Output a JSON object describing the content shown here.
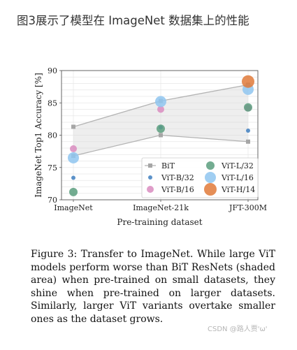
{
  "heading": "图3展示了模型在 ImageNet 数据集上的性能",
  "chart_data": {
    "type": "scatter",
    "xlabel": "Pre-training dataset",
    "ylabel": "ImageNet Top1 Accuracy [%]",
    "categories": [
      "ImageNet",
      "ImageNet-21k",
      "JFT-300M"
    ],
    "ylim": [
      70,
      90
    ],
    "yticks": [
      70,
      75,
      80,
      85,
      90
    ],
    "grid": true,
    "legend_position": "bottom-right",
    "bit_range": {
      "name": "BiT",
      "upper": [
        81.3,
        85.3,
        87.8
      ],
      "lower": [
        76.8,
        80.0,
        79.0
      ],
      "color": "#a6a6a6"
    },
    "series": [
      {
        "name": "ViT-B/32",
        "color": "#3f7fbf",
        "size": "xs",
        "values": [
          73.4,
          81.2,
          80.7
        ]
      },
      {
        "name": "ViT-B/16",
        "color": "#d98cc0",
        "size": "s",
        "values": [
          77.9,
          84.0,
          84.2
        ]
      },
      {
        "name": "ViT-L/32",
        "color": "#5a9e7e",
        "size": "m",
        "values": [
          71.2,
          81.0,
          84.3
        ]
      },
      {
        "name": "ViT-L/16",
        "color": "#8fc5f0",
        "size": "l",
        "values": [
          76.5,
          85.2,
          87.1
        ]
      },
      {
        "name": "ViT-H/14",
        "color": "#e07a3a",
        "size": "xl",
        "values": [
          null,
          null,
          88.3
        ]
      }
    ]
  },
  "caption": "Figure 3:  Transfer to ImageNet.  While large ViT models perform worse than BiT ResNets (shaded area) when pre-trained on small datasets, they shine when pre-trained on larger datasets. Similarly, larger ViT variants overtake smaller ones as the dataset grows.",
  "watermark": "CSDN @路人贾'ω'"
}
